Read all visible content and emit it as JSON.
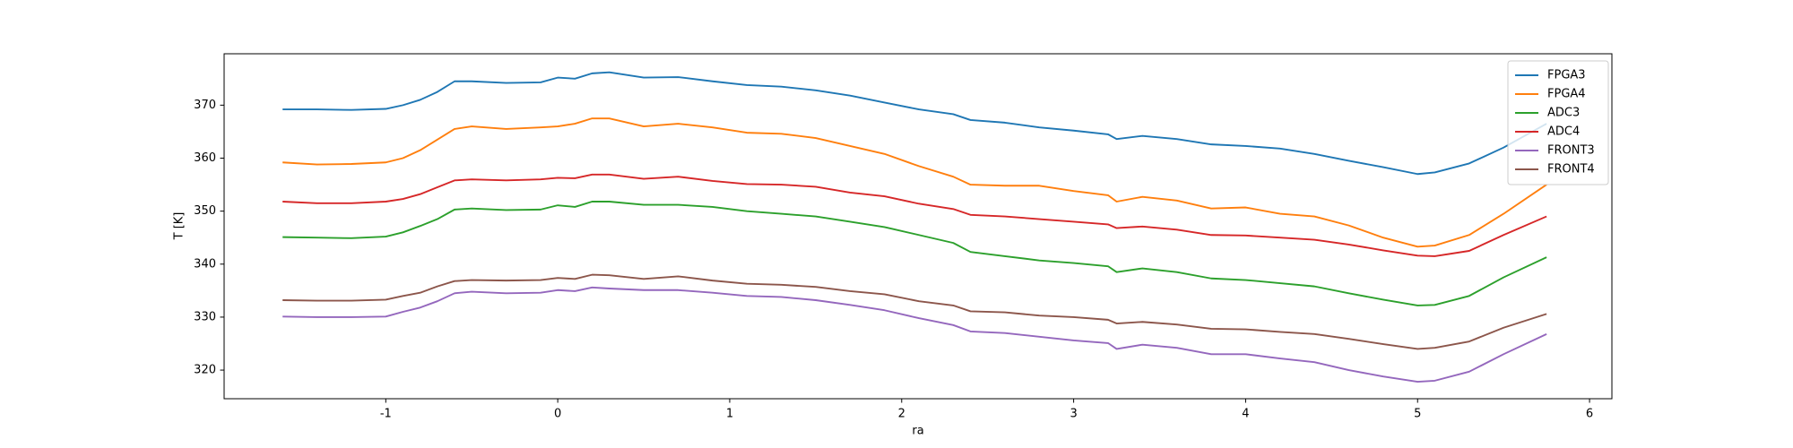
{
  "chart_data": {
    "type": "line",
    "xlabel": "ra",
    "ylabel": "T [K]",
    "x": [
      -1.6,
      -1.4,
      -1.2,
      -1.0,
      -0.9,
      -0.8,
      -0.7,
      -0.6,
      -0.5,
      -0.3,
      -0.1,
      0,
      0.1,
      0.2,
      0.3,
      0.5,
      0.7,
      0.9,
      1.1,
      1.3,
      1.5,
      1.7,
      1.9,
      2.1,
      2.3,
      2.4,
      2.6,
      2.8,
      3.0,
      3.2,
      3.25,
      3.4,
      3.6,
      3.8,
      4.0,
      4.2,
      4.4,
      4.6,
      4.8,
      5.0,
      5.1,
      5.3,
      5.5,
      5.75
    ],
    "series": [
      {
        "name": "FPGA3",
        "color": "#1f77b4",
        "values": [
          369.2,
          369.2,
          369.1,
          369.3,
          370,
          371,
          372.5,
          374.5,
          374.5,
          374.2,
          374.3,
          375.2,
          375,
          376,
          376.2,
          375.2,
          375.3,
          374.5,
          373.8,
          373.5,
          372.8,
          371.8,
          370.5,
          369.2,
          368.3,
          367.2,
          366.7,
          365.8,
          365.2,
          364.5,
          363.6,
          364.2,
          363.6,
          362.6,
          362.3,
          361.8,
          360.8,
          359.5,
          358.3,
          357,
          357.3,
          359,
          362,
          366.5
        ]
      },
      {
        "name": "FPGA4",
        "color": "#ff7f0e",
        "values": [
          359.2,
          358.8,
          358.9,
          359.2,
          360,
          361.5,
          363.5,
          365.5,
          366,
          365.5,
          365.8,
          366,
          366.5,
          367.5,
          367.5,
          366,
          366.5,
          365.8,
          364.8,
          364.6,
          363.8,
          362.3,
          360.8,
          358.5,
          356.5,
          355,
          354.8,
          354.8,
          353.8,
          353,
          351.8,
          352.7,
          352,
          350.5,
          350.7,
          349.5,
          349,
          347.3,
          345,
          343.3,
          343.5,
          345.5,
          349.5,
          355
        ]
      },
      {
        "name": "ADC3",
        "color": "#2ca02c",
        "values": [
          345.1,
          345,
          344.9,
          345.2,
          346,
          347.2,
          348.5,
          350.3,
          350.5,
          350.2,
          350.3,
          351.1,
          350.8,
          351.8,
          351.8,
          351.2,
          351.2,
          350.8,
          350,
          349.5,
          349,
          348,
          347,
          345.5,
          344,
          342.3,
          341.5,
          340.7,
          340.2,
          339.6,
          338.5,
          339.2,
          338.5,
          337.3,
          337,
          336.4,
          335.8,
          334.5,
          333.3,
          332.2,
          332.3,
          334,
          337.5,
          341.3
        ]
      },
      {
        "name": "ADC4",
        "color": "#d62728",
        "values": [
          351.8,
          351.5,
          351.5,
          351.8,
          352.3,
          353.2,
          354.5,
          355.8,
          356,
          355.8,
          356,
          356.3,
          356.2,
          356.9,
          356.9,
          356.1,
          356.5,
          355.7,
          355.1,
          355,
          354.6,
          353.5,
          352.8,
          351.4,
          350.4,
          349.3,
          349,
          348.5,
          348,
          347.5,
          346.8,
          347.1,
          346.5,
          345.5,
          345.4,
          345,
          344.6,
          343.7,
          342.6,
          341.6,
          341.5,
          342.5,
          345.5,
          349
        ]
      },
      {
        "name": "FRONT3",
        "color": "#9467bd",
        "values": [
          330.1,
          330,
          330,
          330.1,
          331,
          331.8,
          333,
          334.5,
          334.8,
          334.5,
          334.6,
          335.1,
          334.9,
          335.6,
          335.4,
          335.1,
          335.1,
          334.6,
          334,
          333.8,
          333.2,
          332.3,
          331.3,
          329.8,
          328.5,
          327.3,
          327,
          326.3,
          325.6,
          325.1,
          324,
          324.8,
          324.2,
          323,
          323,
          322.2,
          321.5,
          320,
          318.8,
          317.8,
          318,
          319.7,
          323,
          326.8
        ]
      },
      {
        "name": "FRONT4",
        "color": "#8c564b",
        "values": [
          333.2,
          333.1,
          333.1,
          333.3,
          334,
          334.6,
          335.8,
          336.8,
          337,
          336.9,
          337,
          337.4,
          337.2,
          338,
          337.9,
          337.2,
          337.7,
          336.9,
          336.3,
          336.1,
          335.7,
          334.9,
          334.3,
          333,
          332.2,
          331.1,
          330.9,
          330.3,
          330,
          329.5,
          328.8,
          329.1,
          328.6,
          327.8,
          327.7,
          327.2,
          326.8,
          325.9,
          324.9,
          324,
          324.2,
          325.4,
          328,
          330.6
        ]
      }
    ],
    "xlim": [
      -1.94,
      6.13
    ],
    "xticks": [
      -1,
      0,
      1,
      2,
      3,
      4,
      5,
      6
    ],
    "ylim": [
      314.6,
      379.7
    ],
    "yticks": [
      320,
      330,
      340,
      350,
      360,
      370
    ],
    "legend": "upper-right",
    "grid": false
  }
}
